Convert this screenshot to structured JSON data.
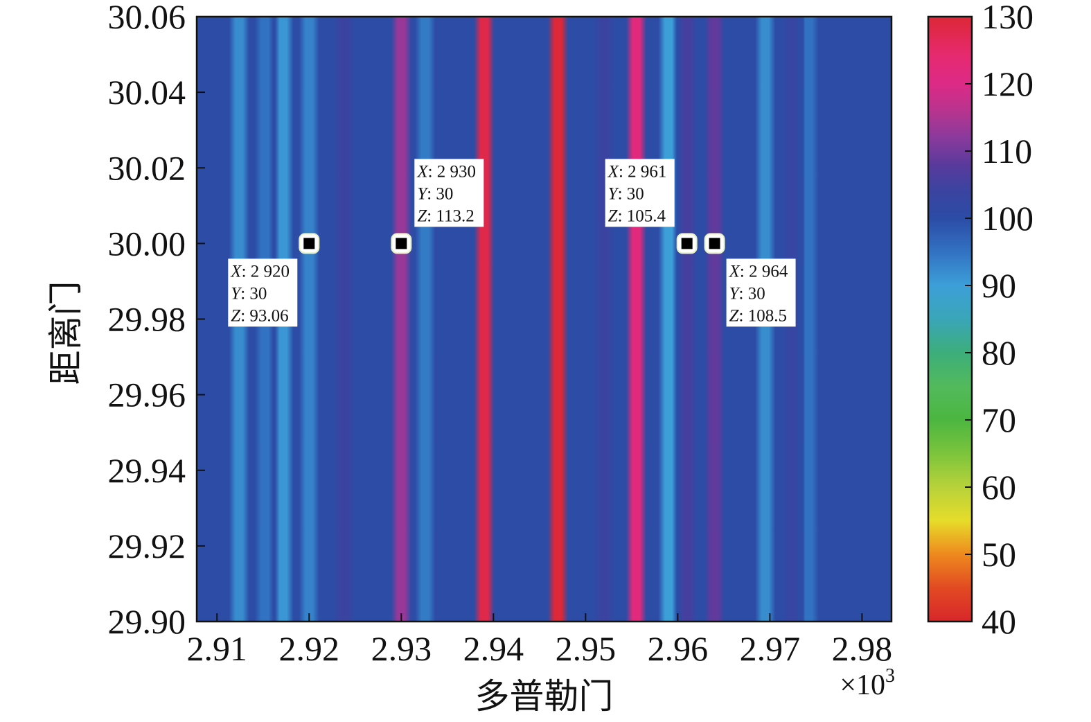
{
  "chart_data": {
    "type": "heatmap",
    "xlabel": "多普勒门",
    "ylabel": "距离门",
    "x_multiplier": "×10",
    "x_multiplier_exp": "3",
    "xlim": [
      2.9078,
      2.9832
    ],
    "ylim": [
      29.9,
      30.06
    ],
    "x_ticks": [
      "2.91",
      "2.92",
      "2.93",
      "2.94",
      "2.95",
      "2.96",
      "2.97",
      "2.98"
    ],
    "x_tick_values": [
      2.91,
      2.92,
      2.93,
      2.94,
      2.95,
      2.96,
      2.97,
      2.98
    ],
    "y_ticks": [
      "29.90",
      "29.92",
      "29.94",
      "29.96",
      "29.98",
      "30.00",
      "30.02",
      "30.04",
      "30.06"
    ],
    "y_tick_values": [
      29.9,
      29.92,
      29.94,
      29.96,
      29.98,
      30.0,
      30.02,
      30.04,
      30.06
    ],
    "colorbar": {
      "range": [
        40,
        130
      ],
      "ticks": [
        "40",
        "50",
        "60",
        "70",
        "80",
        "90",
        "100",
        "110",
        "120",
        "130"
      ],
      "tick_values": [
        40,
        50,
        60,
        70,
        80,
        90,
        100,
        110,
        120,
        130
      ],
      "colormap": [
        [
          40,
          "#d8262b"
        ],
        [
          45,
          "#e24a22"
        ],
        [
          50,
          "#ee8a1e"
        ],
        [
          55,
          "#e6dc2a"
        ],
        [
          60,
          "#b8d23a"
        ],
        [
          65,
          "#7cc43c"
        ],
        [
          70,
          "#4cb640"
        ],
        [
          75,
          "#52ba5c"
        ],
        [
          80,
          "#3cae7a"
        ],
        [
          85,
          "#3aa6b8"
        ],
        [
          90,
          "#3c9fd8"
        ],
        [
          95,
          "#3272c2"
        ],
        [
          100,
          "#2c4ca6"
        ],
        [
          104,
          "#3a44a0"
        ],
        [
          108,
          "#5a3a9c"
        ],
        [
          112,
          "#8a3a9c"
        ],
        [
          116,
          "#b8348e"
        ],
        [
          120,
          "#dc2a86"
        ],
        [
          124,
          "#e62a72"
        ],
        [
          128,
          "#e0284a"
        ],
        [
          130,
          "#dc2838"
        ]
      ]
    },
    "background_value": 100,
    "column_bands": [
      {
        "x": 2.9124,
        "value": 92
      },
      {
        "x": 2.9152,
        "value": 95
      },
      {
        "x": 2.9172,
        "value": 91
      },
      {
        "x": 2.92,
        "value": 93.06
      },
      {
        "x": 2.9238,
        "value": 104
      },
      {
        "x": 2.93,
        "value": 113.2
      },
      {
        "x": 2.9326,
        "value": 94
      },
      {
        "x": 2.939,
        "value": 128
      },
      {
        "x": 2.947,
        "value": 130
      },
      {
        "x": 2.952,
        "value": 104
      },
      {
        "x": 2.9555,
        "value": 122
      },
      {
        "x": 2.959,
        "value": 90
      },
      {
        "x": 2.961,
        "value": 105.4
      },
      {
        "x": 2.964,
        "value": 108.5
      },
      {
        "x": 2.9695,
        "value": 92
      },
      {
        "x": 2.9725,
        "value": 103
      },
      {
        "x": 2.9742,
        "value": 95
      }
    ],
    "markers": [
      {
        "x": 2.92,
        "y": 30.0,
        "X": "2 920",
        "Y": "30",
        "Z": "93.06",
        "label_side": "below-left"
      },
      {
        "x": 2.93,
        "y": 30.0,
        "X": "2 930",
        "Y": "30",
        "Z": "113.2",
        "label_side": "above-right"
      },
      {
        "x": 2.961,
        "y": 30.0,
        "X": "2 961",
        "Y": "30",
        "Z": "105.4",
        "label_side": "above-left"
      },
      {
        "x": 2.964,
        "y": 30.0,
        "X": "2 964",
        "Y": "30",
        "Z": "108.5",
        "label_side": "below-right"
      }
    ]
  }
}
